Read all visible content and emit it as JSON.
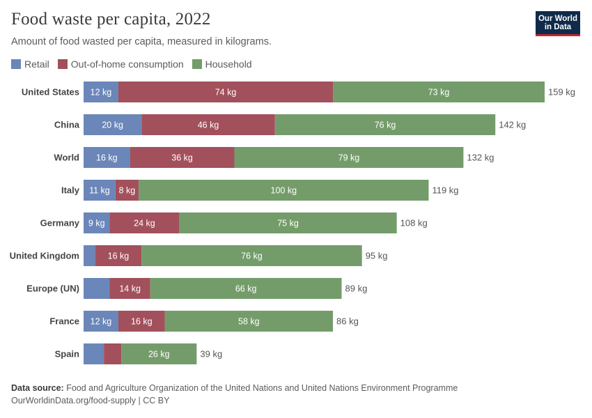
{
  "header": {
    "title": "Food waste per capita, 2022",
    "subtitle": "Amount of food wasted per capita, measured in kilograms.",
    "logo_line1": "Our World",
    "logo_line2": "in Data"
  },
  "footer": {
    "source_label": "Data source:",
    "source_text": "Food and Agriculture Organization of the United Nations and United Nations Environment Programme",
    "url_line": "OurWorldinData.org/food-supply | CC BY"
  },
  "colors": {
    "retail": "#6b86b8",
    "out_of_home": "#a2505c",
    "household": "#749c6a"
  },
  "chart_data": {
    "type": "bar",
    "orientation": "horizontal",
    "stacked": true,
    "unit": "kg",
    "xlim": [
      0,
      159
    ],
    "legend_position": "top-left",
    "categories": [
      "United States",
      "China",
      "World",
      "Italy",
      "Germany",
      "United Kingdom",
      "Europe (UN)",
      "France",
      "Spain"
    ],
    "series": [
      {
        "name": "Retail",
        "color": "#6b86b8",
        "values": [
          12,
          20,
          16,
          11,
          9,
          4,
          9,
          12,
          7
        ]
      },
      {
        "name": "Out-of-home consumption",
        "color": "#a2505c",
        "values": [
          74,
          46,
          36,
          8,
          24,
          16,
          14,
          16,
          6
        ]
      },
      {
        "name": "Household",
        "color": "#749c6a",
        "values": [
          73,
          76,
          79,
          100,
          75,
          76,
          66,
          58,
          26
        ]
      }
    ],
    "segment_labels": [
      [
        "12 kg",
        "74 kg",
        "73 kg"
      ],
      [
        "20 kg",
        "46 kg",
        "76 kg"
      ],
      [
        "16 kg",
        "36 kg",
        "79 kg"
      ],
      [
        "11 kg",
        "8 kg",
        "100 kg"
      ],
      [
        "9 kg",
        "24 kg",
        "75 kg"
      ],
      [
        "",
        "16 kg",
        "76 kg"
      ],
      [
        "",
        "14 kg",
        "66 kg"
      ],
      [
        "12 kg",
        "16 kg",
        "58 kg"
      ],
      [
        "",
        "",
        "26 kg"
      ]
    ],
    "totals": [
      "159 kg",
      "142 kg",
      "132 kg",
      "119 kg",
      "108 kg",
      "95 kg",
      "89 kg",
      "86 kg",
      "39 kg"
    ]
  }
}
